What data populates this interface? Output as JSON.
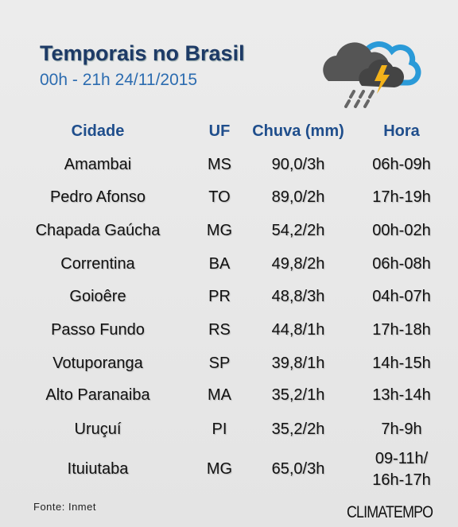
{
  "header": {
    "title": "Temporais no Brasil",
    "subtitle": "00h - 21h 24/11/2015"
  },
  "table": {
    "columns": [
      "Cidade",
      "UF",
      "Chuva (mm)",
      "Hora"
    ],
    "rows": [
      [
        "Amambai",
        "MS",
        "90,0/3h",
        "06h-09h"
      ],
      [
        "Pedro Afonso",
        "TO",
        "89,0/2h",
        "17h-19h"
      ],
      [
        "Chapada Gaúcha",
        "MG",
        "54,2/2h",
        "00h-02h"
      ],
      [
        "Correntina",
        "BA",
        "49,8/2h",
        "06h-08h"
      ],
      [
        "Goioêre",
        "PR",
        "48,8/3h",
        "04h-07h"
      ],
      [
        "Passo Fundo",
        "RS",
        "44,8/1h",
        "17h-18h"
      ],
      [
        "Votuporanga",
        "SP",
        "39,8/1h",
        "14h-15h"
      ],
      [
        "Alto Paranaiba",
        "MA",
        "35,2/1h",
        "13h-14h"
      ],
      [
        "Uruçuí",
        "PI",
        "35,2/2h",
        "7h-9h"
      ],
      [
        "Ituiutaba",
        "MG",
        "65,0/3h",
        [
          "09-11h/",
          "16h-17h"
        ]
      ]
    ]
  },
  "footer": {
    "source": "Fonte: Inmet",
    "brand": "CLIMATEMPO"
  }
}
